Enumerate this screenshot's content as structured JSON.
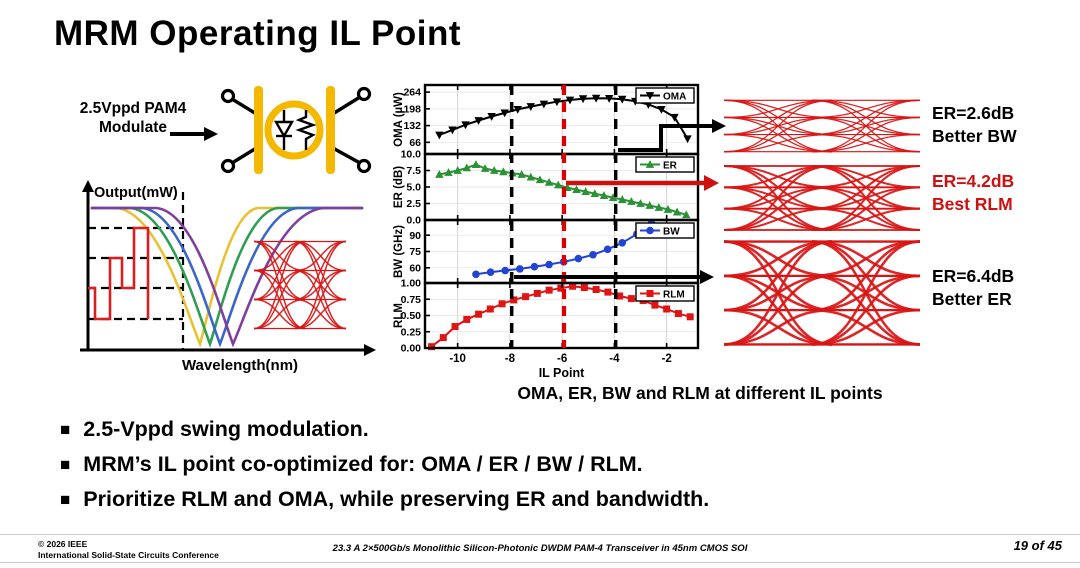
{
  "slide": {
    "title": "MRM Operating IL Point"
  },
  "modulator": {
    "label_line1": "2.5Vppd PAM4",
    "label_line2": "Modulate",
    "body_color": "#F5B800"
  },
  "wavelength_graph": {
    "ylabel": "Output(mW)",
    "xlabel": "Wavelength(nm)",
    "curve_colors": [
      "#E9C233",
      "#2F9E52",
      "#3A66C8",
      "#7E3F9D"
    ],
    "signal_color": "#D81F1F"
  },
  "chart_data": {
    "type": "line",
    "caption": "OMA, ER, BW and RLM at different IL points",
    "xlabel": "IL Point",
    "xlim": [
      -11.25,
      -0.8
    ],
    "xticks": [
      -10,
      -8,
      -6,
      -4,
      -2
    ],
    "vlines": [
      {
        "x": -7.93,
        "color": "#000000",
        "style": "dashed",
        "width": 3.4
      },
      {
        "x": -5.93,
        "color": "#DD0000",
        "style": "dashed",
        "width": 4.2
      },
      {
        "x": -3.95,
        "color": "#000000",
        "style": "dashed",
        "width": 3.4
      }
    ],
    "panels": [
      {
        "name": "OMA",
        "legend": "OMA",
        "ylabel": "OMA (µW)",
        "color": "#000000",
        "marker": "triangle-down",
        "ylim": [
          20,
          292
        ],
        "yticks": [
          66,
          132,
          198,
          264
        ],
        "ytick_labels": [
          "66",
          "132",
          "198",
          "264"
        ],
        "x": [
          -10.7,
          -10.2,
          -9.7,
          -9.2,
          -8.7,
          -8.2,
          -7.7,
          -7.2,
          -6.7,
          -6.2,
          -5.7,
          -5.2,
          -4.7,
          -4.2,
          -3.7,
          -3.2,
          -2.7,
          -2.2,
          -1.7,
          -1.2
        ],
        "y": [
          95,
          115,
          135,
          152,
          168,
          182,
          196,
          207,
          217,
          226,
          233,
          238,
          240,
          239,
          236,
          228,
          215,
          196,
          165,
          80
        ]
      },
      {
        "name": "ER",
        "legend": "ER",
        "ylabel": "ER (dB)",
        "color": "#2A9235",
        "marker": "triangle-up",
        "ylim": [
          0,
          10
        ],
        "yticks": [
          0,
          2.5,
          5,
          7.5,
          10
        ],
        "ytick_labels": [
          "0.0",
          "2.5",
          "5.0",
          "7.5",
          "10.0"
        ],
        "x": [
          -10.7,
          -10.35,
          -10.0,
          -9.65,
          -9.3,
          -8.95,
          -8.6,
          -8.25,
          -7.9,
          -7.55,
          -7.2,
          -6.85,
          -6.5,
          -6.15,
          -5.8,
          -5.45,
          -5.1,
          -4.75,
          -4.4,
          -4.05,
          -3.7,
          -3.35,
          -3.0,
          -2.65,
          -2.3,
          -1.95,
          -1.6,
          -1.25
        ],
        "y": [
          6.9,
          7.2,
          7.5,
          7.9,
          8.4,
          7.8,
          7.5,
          7.3,
          7.1,
          6.9,
          6.5,
          6.1,
          5.7,
          5.3,
          4.9,
          4.6,
          4.3,
          4.0,
          3.7,
          3.4,
          3.1,
          2.8,
          2.5,
          2.2,
          1.9,
          1.6,
          1.2,
          0.8
        ]
      },
      {
        "name": "BW",
        "legend": "BW",
        "ylabel": "BW (GHz)",
        "color": "#2244D0",
        "marker": "circle",
        "ylim": [
          46,
          104
        ],
        "yticks": [
          60,
          75,
          90
        ],
        "ytick_labels": [
          "60",
          "75",
          "90"
        ],
        "x": [
          -9.3,
          -8.74,
          -8.18,
          -7.62,
          -7.06,
          -6.5,
          -5.94,
          -5.38,
          -4.82,
          -4.26,
          -3.7,
          -3.14,
          -2.58
        ],
        "y": [
          54,
          56,
          57.5,
          59,
          61,
          63,
          65.5,
          68.5,
          72,
          77,
          83,
          91,
          101
        ]
      },
      {
        "name": "RLM",
        "legend": "RLM",
        "ylabel": "RLM",
        "color": "#DD1515",
        "marker": "square",
        "ylim": [
          0,
          1
        ],
        "yticks": [
          0,
          0.25,
          0.5,
          0.75,
          1
        ],
        "ytick_labels": [
          "0.00",
          "0.25",
          "0.50",
          "0.75",
          "1.00"
        ],
        "x": [
          -11.0,
          -10.55,
          -10.1,
          -9.65,
          -9.2,
          -8.75,
          -8.3,
          -7.85,
          -7.4,
          -6.95,
          -6.5,
          -6.05,
          -5.6,
          -5.15,
          -4.7,
          -4.25,
          -3.8,
          -3.35,
          -2.9,
          -2.45,
          -2.0,
          -1.55,
          -1.1
        ],
        "y": [
          0.02,
          0.16,
          0.33,
          0.44,
          0.52,
          0.6,
          0.68,
          0.74,
          0.79,
          0.84,
          0.89,
          0.92,
          0.95,
          0.93,
          0.9,
          0.86,
          0.8,
          0.76,
          0.73,
          0.66,
          0.6,
          0.53,
          0.48
        ]
      }
    ]
  },
  "eyes": [
    {
      "label_line1": "ER=2.6dB",
      "label_line2": "Better BW",
      "label_color": "#000000",
      "height": 58,
      "stroke": 1.3
    },
    {
      "label_line1": "ER=4.2dB",
      "label_line2": "Best RLM",
      "label_color": "#CC1111",
      "height": 72,
      "stroke": 2.0
    },
    {
      "label_line1": "ER=6.4dB",
      "label_line2": "Better ER",
      "label_color": "#000000",
      "height": 112,
      "stroke": 2.6
    }
  ],
  "eye_color": "#D81515",
  "bullets": [
    "2.5-Vppd swing modulation.",
    "MRM’s IL point co-optimized for: OMA / ER / BW / RLM.",
    "Prioritize RLM and OMA, while preserving ER and bandwidth."
  ],
  "footer": {
    "left_line1": "© 2026 IEEE",
    "left_line2": "International Solid-State Circuits Conference",
    "center": "23.3 A 2×500Gb/s Monolithic Silicon-Photonic DWDM PAM-4 Transceiver in 45nm CMOS SOI",
    "right": "19 of 45"
  }
}
